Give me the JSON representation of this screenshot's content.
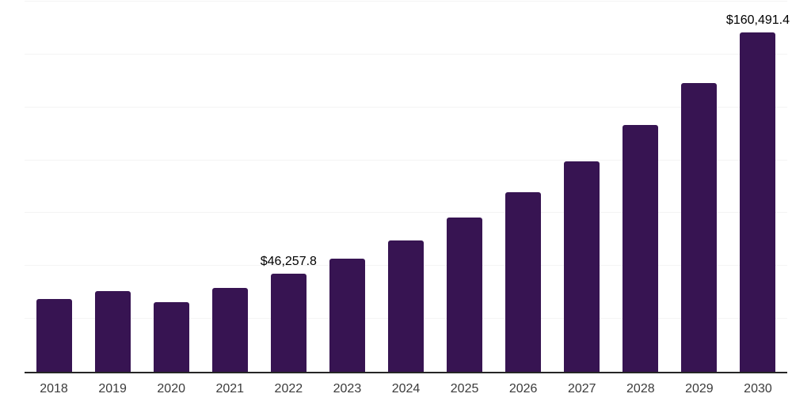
{
  "chart_data": {
    "type": "bar",
    "title": "",
    "xlabel": "",
    "ylabel": "",
    "categories": [
      "2018",
      "2019",
      "2020",
      "2021",
      "2022",
      "2023",
      "2024",
      "2025",
      "2026",
      "2027",
      "2028",
      "2029",
      "2030"
    ],
    "values": [
      34600,
      38000,
      33100,
      39800,
      46257.8,
      53500,
      62200,
      73000,
      85000,
      99400,
      116500,
      136600,
      160491.4
    ],
    "data_labels": {
      "2022": "$46,257.8",
      "2030": "$160,491.4"
    },
    "ylim": [
      0,
      175000
    ],
    "gridline_step": 25000,
    "grid": true,
    "legend": false,
    "colors": {
      "bar": "#371452",
      "axis_line": "#262626",
      "gridline": "#f4f4f4",
      "tick_label": "#3b3b3b",
      "data_label": "#000000",
      "background": "#ffffff"
    }
  }
}
